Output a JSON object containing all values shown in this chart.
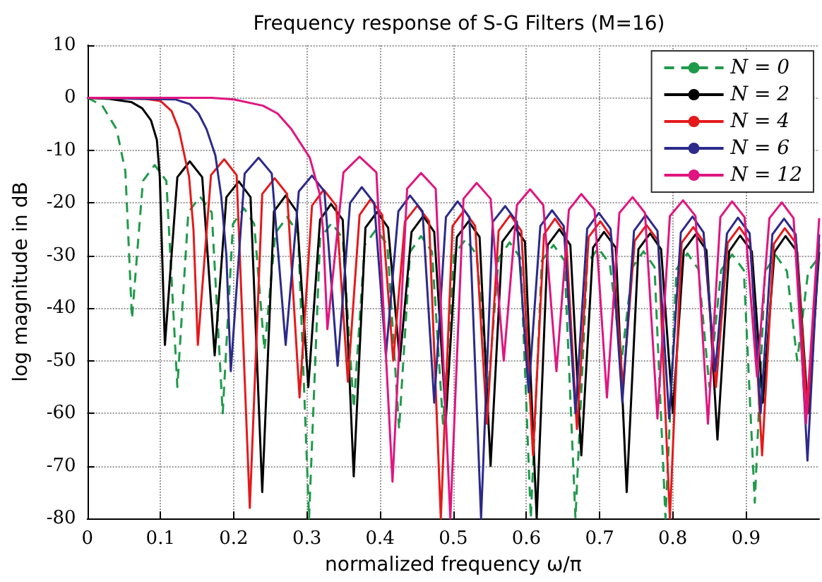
{
  "chart_data": {
    "type": "line",
    "title": "Frequency response of S-G Filters (M=16)",
    "xlabel": "normalized frequency ω/π",
    "ylabel": "log magnitude in dB",
    "xlim": [
      0,
      1
    ],
    "ylim": [
      -80,
      10
    ],
    "xticks": [
      0,
      0.1,
      0.2,
      0.3,
      0.4,
      0.5,
      0.6,
      0.7,
      0.8,
      0.9
    ],
    "yticks": [
      -80,
      -70,
      -60,
      -50,
      -40,
      -30,
      -20,
      -10,
      0,
      10
    ],
    "grid": true,
    "legend": "top right",
    "marker": "none",
    "series": [
      {
        "name": "N = 0",
        "color": "#1f9a4a",
        "line_style": "dashed",
        "x": [
          0,
          0.02,
          0.04,
          0.052,
          0.061,
          0.076,
          0.092,
          0.108,
          0.123,
          0.138,
          0.154,
          0.17,
          0.185,
          0.199,
          0.214,
          0.228,
          0.242,
          0.257,
          0.273,
          0.288,
          0.303,
          0.318,
          0.334,
          0.349,
          0.364,
          0.379,
          0.395,
          0.41,
          0.426,
          0.441,
          0.456,
          0.471,
          0.486,
          0.501,
          0.517,
          0.532,
          0.548,
          0.562,
          0.577,
          0.592,
          0.606,
          0.621,
          0.637,
          0.652,
          0.667,
          0.683,
          0.698,
          0.714,
          0.73,
          0.745,
          0.76,
          0.775,
          0.79,
          0.805,
          0.82,
          0.835,
          0.85,
          0.866,
          0.881,
          0.897,
          0.912,
          0.926,
          0.941,
          0.956,
          0.97,
          0.985,
          1
        ],
        "values": [
          0,
          -1.4,
          -6,
          -14,
          -42,
          -15.8,
          -12.8,
          -15.8,
          -55,
          -21.8,
          -18.8,
          -21.8,
          -60,
          -24,
          -21,
          -24,
          -48,
          -25.7,
          -22.7,
          -25.7,
          -80,
          -26.8,
          -23.8,
          -26.8,
          -59,
          -28,
          -25,
          -28,
          -63,
          -29.3,
          -26.3,
          -29.3,
          -62,
          -29.9,
          -26.9,
          -29.9,
          -55,
          -30.5,
          -27.5,
          -30.5,
          -80,
          -31,
          -28,
          -31,
          -80,
          -31.6,
          -28.6,
          -31.6,
          -50,
          -32.2,
          -29.2,
          -32.2,
          -80,
          -32.6,
          -29.6,
          -32.6,
          -55,
          -32.8,
          -29.8,
          -32.8,
          -77,
          -33,
          -30,
          -33,
          -50,
          -33,
          -30.2
        ]
      },
      {
        "name": "N = 2",
        "color": "#000000",
        "line_style": "solid",
        "x": [
          0,
          0.03,
          0.06,
          0.075,
          0.087,
          0.095,
          0.099,
          0.106,
          0.123,
          0.14,
          0.157,
          0.174,
          0.19,
          0.207,
          0.223,
          0.239,
          0.255,
          0.271,
          0.286,
          0.302,
          0.318,
          0.333,
          0.349,
          0.364,
          0.38,
          0.396,
          0.411,
          0.427,
          0.443,
          0.459,
          0.474,
          0.49,
          0.505,
          0.521,
          0.536,
          0.551,
          0.567,
          0.583,
          0.598,
          0.614,
          0.629,
          0.645,
          0.66,
          0.675,
          0.691,
          0.706,
          0.722,
          0.737,
          0.753,
          0.769,
          0.784,
          0.8,
          0.815,
          0.831,
          0.846,
          0.861,
          0.877,
          0.892,
          0.908,
          0.923,
          0.939,
          0.954,
          0.97,
          0.985,
          1
        ],
        "values": [
          0,
          -0.2,
          -0.8,
          -2,
          -4.3,
          -8,
          -15,
          -47,
          -15.1,
          -12.1,
          -15.1,
          -49,
          -18.9,
          -15.9,
          -18.9,
          -75,
          -21.6,
          -18.6,
          -21.6,
          -55,
          -23.2,
          -20.2,
          -23.2,
          -72,
          -24.7,
          -21.7,
          -24.7,
          -50,
          -25.5,
          -22.5,
          -25.5,
          -61,
          -26.5,
          -23.5,
          -26.5,
          -70,
          -27.4,
          -24.4,
          -27.4,
          -80,
          -28,
          -25,
          -28,
          -68,
          -28.5,
          -25.5,
          -28.5,
          -75,
          -28.8,
          -25.8,
          -28.8,
          -60,
          -29,
          -26,
          -29,
          -65,
          -29.2,
          -26.2,
          -29.2,
          -58,
          -29.3,
          -26.3,
          -29.3,
          -60,
          -29.3
        ]
      },
      {
        "name": "N = 4",
        "color": "#e41a1c",
        "line_style": "solid",
        "x": [
          0,
          0.08,
          0.1,
          0.115,
          0.125,
          0.139,
          0.145,
          0.151,
          0.169,
          0.187,
          0.204,
          0.222,
          0.239,
          0.256,
          0.273,
          0.29,
          0.307,
          0.323,
          0.34,
          0.356,
          0.372,
          0.387,
          0.403,
          0.418,
          0.434,
          0.451,
          0.467,
          0.483,
          0.499,
          0.515,
          0.53,
          0.546,
          0.562,
          0.578,
          0.593,
          0.609,
          0.624,
          0.639,
          0.654,
          0.669,
          0.685,
          0.701,
          0.716,
          0.732,
          0.748,
          0.764,
          0.78,
          0.796,
          0.812,
          0.828,
          0.843,
          0.859,
          0.875,
          0.891,
          0.906,
          0.922,
          0.938,
          0.953,
          0.969,
          0.984,
          1
        ],
        "values": [
          0,
          -0.2,
          -0.6,
          -2.5,
          -6,
          -15,
          -25,
          -47,
          -14.7,
          -11.7,
          -14.7,
          -78,
          -18.3,
          -15.3,
          -18.3,
          -57,
          -20.5,
          -17.5,
          -20.5,
          -54,
          -22.3,
          -19.3,
          -22.3,
          -50,
          -23.5,
          -20.5,
          -23.5,
          -80,
          -24.4,
          -21.4,
          -24.4,
          -62,
          -25.3,
          -22.3,
          -25.3,
          -68,
          -26,
          -23,
          -26,
          -63,
          -26.5,
          -23.5,
          -26.5,
          -55,
          -27.2,
          -24.2,
          -27.2,
          -80,
          -27.6,
          -24.6,
          -27.6,
          -55,
          -27.6,
          -24.6,
          -27.6,
          -68,
          -27.8,
          -24.8,
          -27.8,
          -60,
          -27.8
        ]
      },
      {
        "name": "N = 6",
        "color": "#2c2a8a",
        "line_style": "solid",
        "x": [
          0,
          0.12,
          0.14,
          0.152,
          0.163,
          0.175,
          0.183,
          0.19,
          0.196,
          0.215,
          0.234,
          0.252,
          0.271,
          0.289,
          0.307,
          0.324,
          0.342,
          0.359,
          0.375,
          0.392,
          0.408,
          0.425,
          0.441,
          0.458,
          0.474,
          0.49,
          0.506,
          0.522,
          0.538,
          0.554,
          0.571,
          0.587,
          0.603,
          0.619,
          0.635,
          0.651,
          0.667,
          0.683,
          0.699,
          0.715,
          0.731,
          0.747,
          0.763,
          0.779,
          0.795,
          0.811,
          0.827,
          0.842,
          0.858,
          0.874,
          0.889,
          0.905,
          0.92,
          0.936,
          0.952,
          0.968,
          0.984,
          1
        ],
        "values": [
          0,
          -0.3,
          -1.2,
          -3,
          -6,
          -11,
          -18.8,
          -30,
          -52,
          -14.4,
          -11.4,
          -14.4,
          -47,
          -17.8,
          -14.8,
          -17.8,
          -51,
          -20,
          -17,
          -20,
          -49,
          -21.6,
          -18.6,
          -21.6,
          -58,
          -22.7,
          -19.7,
          -22.7,
          -80,
          -23.6,
          -20.6,
          -23.6,
          -56,
          -24.4,
          -21.4,
          -24.4,
          -60,
          -24.9,
          -21.9,
          -24.9,
          -58,
          -25.3,
          -22.3,
          -25.3,
          -61,
          -25.6,
          -22.6,
          -25.6,
          -52,
          -25.8,
          -22.8,
          -25.8,
          -60,
          -26,
          -23,
          -26,
          -69,
          -26
        ]
      },
      {
        "name": "N = 12",
        "color": "#e0157f",
        "line_style": "solid",
        "x": [
          0,
          0.17,
          0.2,
          0.24,
          0.26,
          0.279,
          0.304,
          0.317,
          0.322,
          0.328,
          0.35,
          0.372,
          0.395,
          0.417,
          0.437,
          0.456,
          0.476,
          0.496,
          0.514,
          0.532,
          0.551,
          0.569,
          0.587,
          0.605,
          0.623,
          0.641,
          0.658,
          0.675,
          0.693,
          0.71,
          0.727,
          0.745,
          0.762,
          0.779,
          0.796,
          0.814,
          0.831,
          0.848,
          0.865,
          0.881,
          0.898,
          0.915,
          0.932,
          0.949,
          0.965,
          0.982,
          1
        ],
        "values": [
          0,
          0,
          -0.3,
          -1.5,
          -3,
          -6,
          -11.4,
          -18,
          -25,
          -44,
          -14.2,
          -11.2,
          -14.2,
          -73,
          -17.3,
          -14.3,
          -17.3,
          -80,
          -19.2,
          -16.2,
          -19.2,
          -50,
          -20.4,
          -17.4,
          -20.4,
          -52,
          -21.3,
          -18.3,
          -21.3,
          -57,
          -21.9,
          -18.9,
          -21.9,
          -61,
          -22.5,
          -19.5,
          -22.5,
          -62,
          -22.7,
          -19.7,
          -22.7,
          -53,
          -22.9,
          -19.9,
          -22.9,
          -62,
          -22.9
        ]
      }
    ]
  }
}
